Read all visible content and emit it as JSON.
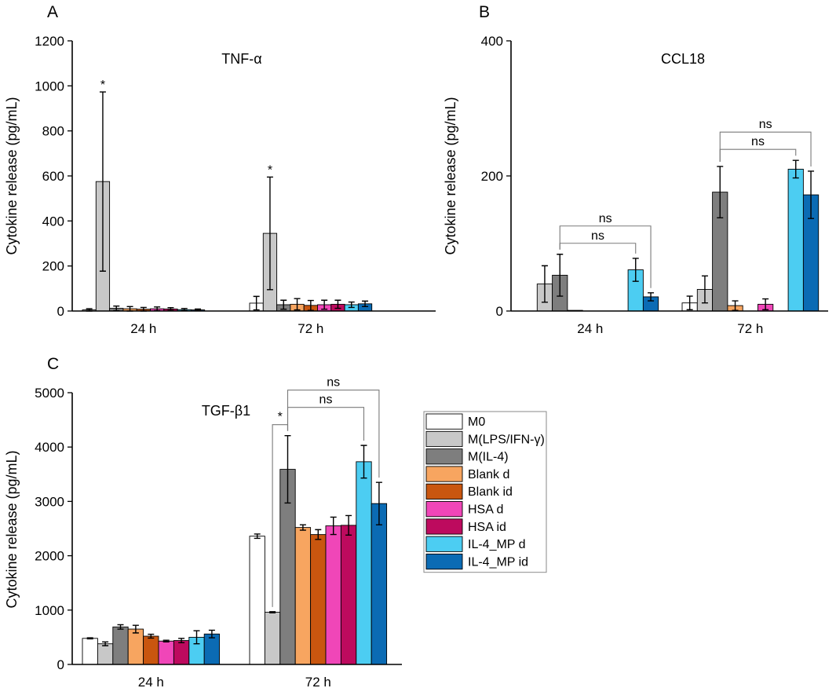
{
  "chart_data": [
    {
      "panel": "A",
      "type": "bar",
      "title": "TNF-α",
      "xlabel": "",
      "ylabel": "Cytokine release (pg/mL)",
      "ylim": [
        0,
        1200
      ],
      "yticks": [
        "0",
        "200",
        "400",
        "600",
        "800",
        "1000",
        "1200"
      ],
      "categories": [
        "24 h",
        "72 h"
      ],
      "series": [
        {
          "name": "M0",
          "values": [
            5,
            35
          ],
          "errors": [
            5,
            30
          ]
        },
        {
          "name": "M(LPS/IFN-γ)",
          "values": [
            575,
            345
          ],
          "errors": [
            398,
            250
          ]
        },
        {
          "name": "M(IL-4)",
          "values": [
            12,
            28
          ],
          "errors": [
            10,
            20
          ]
        },
        {
          "name": "Blank d",
          "values": [
            10,
            30
          ],
          "errors": [
            10,
            25
          ]
        },
        {
          "name": "Blank id",
          "values": [
            8,
            25
          ],
          "errors": [
            8,
            22
          ]
        },
        {
          "name": "HSA d",
          "values": [
            10,
            28
          ],
          "errors": [
            8,
            20
          ]
        },
        {
          "name": "HSA id",
          "values": [
            9,
            30
          ],
          "errors": [
            6,
            18
          ]
        },
        {
          "name": "IL-4_MP d",
          "values": [
            6,
            28
          ],
          "errors": [
            5,
            12
          ]
        },
        {
          "name": "IL-4_MP id",
          "values": [
            5,
            32
          ],
          "errors": [
            4,
            12
          ]
        }
      ],
      "annotations": [
        {
          "text": "*",
          "category": "24 h",
          "series": "M(LPS/IFN-γ)"
        },
        {
          "text": "*",
          "category": "72 h",
          "series": "M(LPS/IFN-γ)"
        }
      ]
    },
    {
      "panel": "B",
      "type": "bar",
      "title": "CCL18",
      "xlabel": "",
      "ylabel": "Cytokine release (pg/mL)",
      "ylim": [
        0,
        400
      ],
      "yticks": [
        "0",
        "200",
        "400"
      ],
      "categories": [
        "24 h",
        "72 h"
      ],
      "series": [
        {
          "name": "M0",
          "values": [
            0,
            12
          ],
          "errors": [
            0,
            10
          ]
        },
        {
          "name": "M(LPS/IFN-γ)",
          "values": [
            40,
            32
          ],
          "errors": [
            27,
            20
          ]
        },
        {
          "name": "M(IL-4)",
          "values": [
            53,
            176
          ],
          "errors": [
            31,
            38
          ]
        },
        {
          "name": "Blank d",
          "values": [
            1,
            8
          ],
          "errors": [
            0,
            7
          ]
        },
        {
          "name": "Blank id",
          "values": [
            0,
            0
          ],
          "errors": [
            0,
            0
          ]
        },
        {
          "name": "HSA d",
          "values": [
            0,
            10
          ],
          "errors": [
            0,
            8
          ]
        },
        {
          "name": "HSA id",
          "values": [
            0,
            0
          ],
          "errors": [
            0,
            0
          ]
        },
        {
          "name": "IL-4_MP d",
          "values": [
            61,
            210
          ],
          "errors": [
            17,
            13
          ]
        },
        {
          "name": "IL-4_MP id",
          "values": [
            21,
            172
          ],
          "errors": [
            6,
            35
          ]
        }
      ],
      "annotations": [
        {
          "text": "ns",
          "category": "24 h",
          "from": "M(IL-4)",
          "to": "IL-4_MP d"
        },
        {
          "text": "ns",
          "category": "24 h",
          "from": "M(IL-4)",
          "to": "IL-4_MP id"
        },
        {
          "text": "ns",
          "category": "72 h",
          "from": "M(IL-4)",
          "to": "IL-4_MP d"
        },
        {
          "text": "ns",
          "category": "72 h",
          "from": "M(IL-4)",
          "to": "IL-4_MP id"
        }
      ]
    },
    {
      "panel": "C",
      "type": "bar",
      "title": "TGF-β1",
      "xlabel": "",
      "ylabel": "Cytokine release (pg/mL)",
      "ylim": [
        0,
        5000
      ],
      "yticks": [
        "0",
        "1000",
        "2000",
        "3000",
        "4000",
        "5000"
      ],
      "categories": [
        "24 h",
        "72 h"
      ],
      "series": [
        {
          "name": "M0",
          "values": [
            480,
            2360
          ],
          "errors": [
            10,
            40
          ]
        },
        {
          "name": "M(LPS/IFN-γ)",
          "values": [
            380,
            960
          ],
          "errors": [
            35,
            10
          ]
        },
        {
          "name": "M(IL-4)",
          "values": [
            690,
            3590
          ],
          "errors": [
            40,
            620
          ]
        },
        {
          "name": "Blank d",
          "values": [
            650,
            2520
          ],
          "errors": [
            70,
            50
          ]
        },
        {
          "name": "Blank id",
          "values": [
            520,
            2390
          ],
          "errors": [
            35,
            90
          ]
        },
        {
          "name": "HSA d",
          "values": [
            430,
            2550
          ],
          "errors": [
            15,
            160
          ]
        },
        {
          "name": "HSA id",
          "values": [
            440,
            2560
          ],
          "errors": [
            40,
            180
          ]
        },
        {
          "name": "IL-4_MP d",
          "values": [
            500,
            3730
          ],
          "errors": [
            120,
            300
          ]
        },
        {
          "name": "IL-4_MP id",
          "values": [
            560,
            2960
          ],
          "errors": [
            70,
            390
          ]
        }
      ],
      "annotations": [
        {
          "text": "*",
          "category": "72 h",
          "from": "M(LPS/IFN-γ)",
          "to": "M(IL-4)"
        },
        {
          "text": "ns",
          "category": "72 h",
          "from": "M(IL-4)",
          "to": "IL-4_MP d"
        },
        {
          "text": "ns",
          "category": "72 h",
          "from": "M(IL-4)",
          "to": "IL-4_MP id"
        }
      ],
      "legend": {
        "placement": "right",
        "entries": [
          "M0",
          "M(LPS/IFN-γ)",
          "M(IL-4)",
          "Blank d",
          "Blank id",
          "HSA d",
          "HSA id",
          "IL-4_MP d",
          "IL-4_MP id"
        ]
      }
    }
  ],
  "series_colors": [
    "#ffffff",
    "#c8c8c8",
    "#7e7e7e",
    "#f7a560",
    "#c9560f",
    "#f046b8",
    "#bd0a5e",
    "#4ccdf2",
    "#0b6bb4"
  ]
}
